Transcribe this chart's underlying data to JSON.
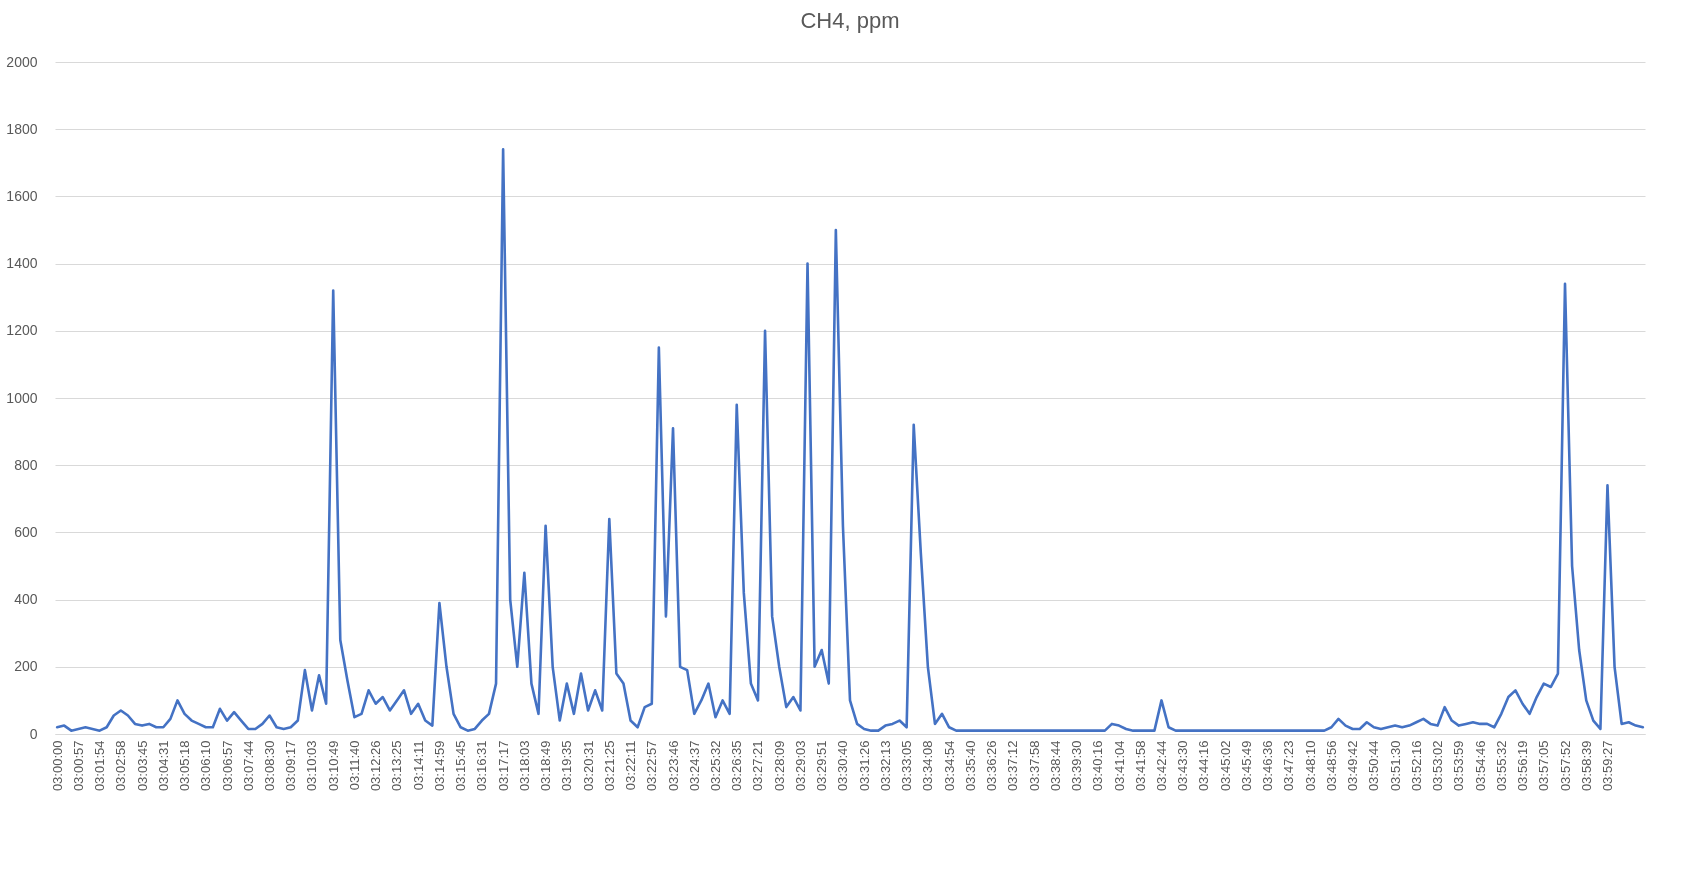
{
  "chart_data": {
    "type": "line",
    "title": "CH4, ppm",
    "categories": [
      "03:00:00",
      null,
      null,
      "03:00:57",
      null,
      null,
      "03:01:54",
      null,
      null,
      "03:02:58",
      null,
      null,
      "03:03:45",
      null,
      null,
      "03:04:31",
      null,
      null,
      "03:05:18",
      null,
      null,
      "03:06:10",
      null,
      null,
      "03:06:57",
      null,
      null,
      "03:07:44",
      null,
      null,
      "03:08:30",
      null,
      null,
      "03:09:17",
      null,
      null,
      "03:10:03",
      null,
      null,
      "03:10:49",
      null,
      null,
      "03:11:40",
      null,
      null,
      "03:12:26",
      null,
      null,
      "03:13:25",
      null,
      null,
      "03:14:11",
      null,
      null,
      "03:14:59",
      null,
      null,
      "03:15:45",
      null,
      null,
      "03:16:31",
      null,
      null,
      "03:17:17",
      null,
      null,
      "03:18:03",
      null,
      null,
      "03:18:49",
      null,
      null,
      "03:19:35",
      null,
      null,
      "03:20:31",
      null,
      null,
      "03:21:25",
      null,
      null,
      "03:22:11",
      null,
      null,
      "03:22:57",
      null,
      null,
      "03:23:46",
      null,
      null,
      "03:24:37",
      null,
      null,
      "03:25:32",
      null,
      null,
      "03:26:35",
      null,
      null,
      "03:27:21",
      null,
      null,
      "03:28:09",
      null,
      null,
      "03:29:03",
      null,
      null,
      "03:29:51",
      null,
      null,
      "03:30:40",
      null,
      null,
      "03:31:26",
      null,
      null,
      "03:32:13",
      null,
      null,
      "03:33:05",
      null,
      null,
      "03:34:08",
      null,
      null,
      "03:34:54",
      null,
      null,
      "03:35:40",
      null,
      null,
      "03:36:26",
      null,
      null,
      "03:37:12",
      null,
      null,
      "03:37:58",
      null,
      null,
      "03:38:44",
      null,
      null,
      "03:39:30",
      null,
      null,
      "03:40:16",
      null,
      null,
      "03:41:04",
      null,
      null,
      "03:41:58",
      null,
      null,
      "03:42:44",
      null,
      null,
      "03:43:30",
      null,
      null,
      "03:44:16",
      null,
      null,
      "03:45:02",
      null,
      null,
      "03:45:49",
      null,
      null,
      "03:46:36",
      null,
      null,
      "03:47:23",
      null,
      null,
      "03:48:10",
      null,
      null,
      "03:48:56",
      null,
      null,
      "03:49:42",
      null,
      null,
      "03:50:44",
      null,
      null,
      "03:51:30",
      null,
      null,
      "03:52:16",
      null,
      null,
      "03:53:02",
      null,
      null,
      "03:53:59",
      null,
      null,
      "03:54:46",
      null,
      null,
      "03:55:32",
      null,
      null,
      "03:56:19",
      null,
      null,
      "03:57:05",
      null,
      null,
      "03:57:52",
      null,
      null,
      "03:58:39",
      null,
      null,
      "03:59:27",
      null,
      null,
      null,
      null,
      null
    ],
    "series": [
      {
        "color": "#4472c4",
        "values": [
          20,
          25,
          10,
          15,
          20,
          15,
          10,
          20,
          55,
          70,
          55,
          30,
          25,
          30,
          20,
          20,
          45,
          100,
          60,
          40,
          30,
          20,
          20,
          75,
          40,
          65,
          40,
          15,
          15,
          30,
          55,
          20,
          15,
          20,
          40,
          190,
          70,
          175,
          90,
          1320,
          280,
          160,
          50,
          60,
          130,
          90,
          110,
          70,
          100,
          130,
          60,
          90,
          40,
          25,
          390,
          200,
          60,
          20,
          10,
          15,
          40,
          60,
          150,
          1740,
          400,
          200,
          480,
          150,
          60,
          620,
          200,
          40,
          150,
          60,
          180,
          70,
          130,
          70,
          640,
          180,
          150,
          40,
          20,
          80,
          90,
          1150,
          350,
          910,
          200,
          190,
          60,
          100,
          150,
          50,
          100,
          60,
          980,
          420,
          150,
          100,
          1200,
          350,
          200,
          80,
          110,
          70,
          1400,
          200,
          250,
          150,
          1500,
          620,
          100,
          30,
          15,
          10,
          10,
          25,
          30,
          40,
          20,
          920,
          540,
          200,
          30,
          60,
          20,
          10,
          10,
          10,
          10,
          10,
          10,
          10,
          10,
          10,
          10,
          10,
          10,
          10,
          10,
          10,
          10,
          10,
          10,
          10,
          10,
          10,
          10,
          30,
          25,
          15,
          10,
          10,
          10,
          10,
          100,
          20,
          10,
          10,
          10,
          10,
          10,
          10,
          10,
          10,
          10,
          10,
          10,
          10,
          10,
          10,
          10,
          10,
          10,
          10,
          10,
          10,
          10,
          10,
          20,
          45,
          25,
          15,
          15,
          35,
          20,
          15,
          20,
          25,
          20,
          25,
          35,
          45,
          30,
          25,
          80,
          40,
          25,
          30,
          35,
          30,
          30,
          20,
          60,
          110,
          130,
          90,
          60,
          110,
          150,
          140,
          180,
          1340,
          500,
          250,
          100,
          40,
          15,
          740,
          200,
          30,
          35,
          25,
          20
        ]
      }
    ],
    "ylim": [
      0,
      2000
    ],
    "yticks": [
      0,
      200,
      400,
      600,
      800,
      1000,
      1200,
      1400,
      1600,
      1800,
      2000
    ],
    "grid": "y"
  }
}
